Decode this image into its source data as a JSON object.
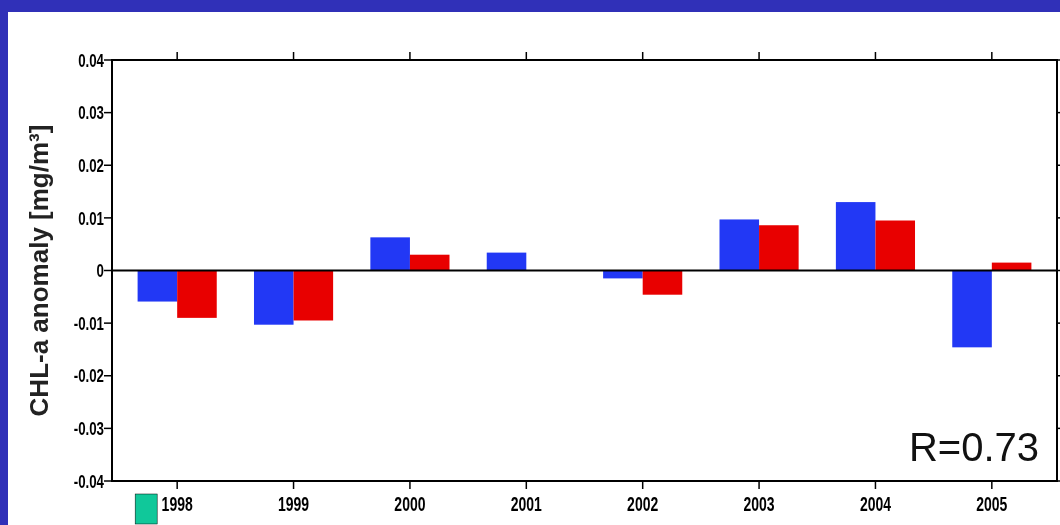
{
  "chart_data": {
    "type": "bar",
    "ylabel": "CHL-a anomaly [mg/m³]",
    "categories": [
      "1998",
      "1999",
      "2000",
      "2001",
      "2002",
      "2003",
      "2004",
      "2005"
    ],
    "series": [
      {
        "color": "#2238f5",
        "values": [
          -0.0059,
          -0.0103,
          0.0063,
          0.0034,
          -0.0015,
          0.0097,
          0.013,
          -0.0146
        ]
      },
      {
        "color": "#e80000",
        "values": [
          -0.009,
          -0.0095,
          0.003,
          null,
          -0.0046,
          0.0086,
          0.0095,
          0.0015
        ]
      }
    ],
    "ylim": [
      -0.04,
      0.04
    ],
    "yticks": [
      {
        "value": -0.04,
        "label": "-0.04"
      },
      {
        "value": -0.03,
        "label": "-0.03"
      },
      {
        "value": -0.02,
        "label": "-0.02"
      },
      {
        "value": -0.01,
        "label": "-0.01"
      },
      0,
      {
        "value": 0.01,
        "label": "0.01"
      },
      {
        "value": 0.02,
        "label": "0.02"
      },
      {
        "value": 0.03,
        "label": "0.03"
      },
      {
        "value": 0.04,
        "label": "0.04"
      }
    ],
    "annotations": [
      "R=0.73"
    ]
  }
}
